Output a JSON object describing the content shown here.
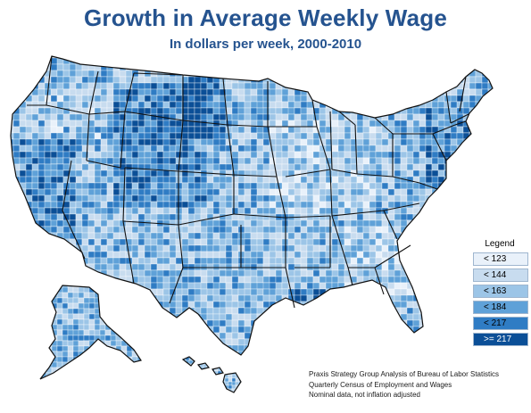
{
  "header": {
    "title": "Growth in Average Weekly Wage",
    "subtitle": "In dollars per week, 2000-2010"
  },
  "legend": {
    "title": "Legend",
    "items": [
      {
        "label": "< 123",
        "color": "#e9f1fa",
        "text_color": "#000000"
      },
      {
        "label": "< 144",
        "color": "#c8dcef",
        "text_color": "#000000"
      },
      {
        "label": "< 163",
        "color": "#9cc5e7",
        "text_color": "#000000"
      },
      {
        "label": "< 184",
        "color": "#5fa1d8",
        "text_color": "#000000"
      },
      {
        "label": "< 217",
        "color": "#2f7cc4",
        "text_color": "#000000"
      },
      {
        "label": ">= 217",
        "color": "#0b4f97",
        "text_color": "#ffffff"
      }
    ]
  },
  "source": {
    "lines": [
      "Praxis Strategy Group Analysis of Bureau of Labor Statistics",
      "Quarterly Census of Employment and Wages",
      "Nominal data, not inflation adjusted"
    ]
  },
  "map": {
    "colors": [
      "#e9f1fa",
      "#c8dcef",
      "#9cc5e7",
      "#5fa1d8",
      "#2f7cc4",
      "#0b4f97"
    ],
    "border_color": "#111111",
    "county_border_color": "#ffffff"
  }
}
